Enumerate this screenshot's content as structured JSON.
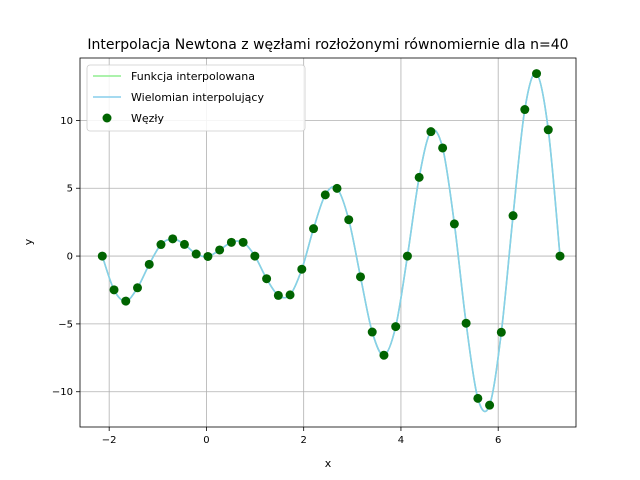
{
  "chart_data": {
    "type": "line",
    "title": "Interpolacja Newtona z węzłami rozłożonymi równomiernie dla n=40",
    "xlabel": "x",
    "ylabel": "y",
    "xlim": [
      -2.6,
      7.6
    ],
    "ylim": [
      -12.6,
      14.6
    ],
    "xticks": [
      -2,
      0,
      2,
      4,
      6
    ],
    "yticks": [
      -10,
      -5,
      0,
      5,
      10
    ],
    "xtick_labels": [
      "−2",
      "0",
      "2",
      "4",
      "6"
    ],
    "ytick_labels": [
      "−10",
      "−5",
      "0",
      "5",
      "10"
    ],
    "grid": true,
    "legend_position": "top-left",
    "series": [
      {
        "name": "Funkcja interpolowana",
        "kind": "line",
        "color": "#90ee90"
      },
      {
        "name": "Wielomian interpolujący",
        "kind": "line",
        "color": "#87ceeb"
      },
      {
        "name": "Węzły",
        "kind": "scatter",
        "color": "#006400"
      }
    ],
    "nodes": {
      "x": [
        -2.1416,
        -1.9002,
        -1.6589,
        -1.4175,
        -1.1762,
        -0.9348,
        -0.6935,
        -0.4521,
        -0.2108,
        0.0306,
        0.2719,
        0.5133,
        0.7546,
        0.996,
        1.2373,
        1.4787,
        1.72,
        1.9614,
        2.2027,
        2.4441,
        2.6854,
        2.9268,
        3.1681,
        3.4095,
        3.6508,
        3.8922,
        4.1335,
        4.3749,
        4.6162,
        4.8576,
        5.0989,
        5.3403,
        5.5816,
        5.823,
        6.0643,
        6.3057,
        6.547,
        6.7884,
        7.0297,
        7.2711
      ],
      "y": [
        0.0,
        -2.49,
        -3.32,
        -2.34,
        -0.61,
        0.85,
        1.27,
        0.86,
        0.15,
        -0.03,
        0.45,
        1.01,
        1.01,
        0.0,
        -1.67,
        -2.9,
        -2.86,
        -0.97,
        2.02,
        4.51,
        4.99,
        2.68,
        -1.53,
        -5.6,
        -7.31,
        -5.2,
        0.0,
        5.8,
        9.17,
        7.97,
        2.37,
        -4.95,
        -10.49,
        -10.99,
        -5.62,
        2.98,
        10.8,
        13.45,
        9.31,
        0.0
      ]
    }
  }
}
